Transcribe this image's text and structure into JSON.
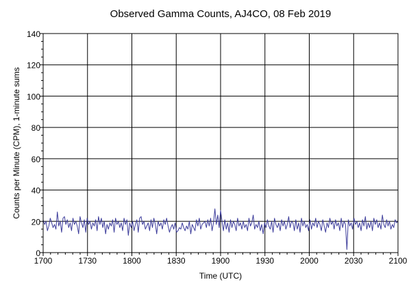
{
  "chart_data": {
    "type": "line",
    "title": "Observed Gamma Counts, AJ4CO, 08 Feb 2019",
    "xlabel": "Time (UTC)",
    "ylabel": "Counts per Minute (CPM), 1-minute sums",
    "x_ticks": [
      {
        "minutes": 0,
        "label": "1700"
      },
      {
        "minutes": 30,
        "label": "1730"
      },
      {
        "minutes": 60,
        "label": "1800"
      },
      {
        "minutes": 90,
        "label": "1830"
      },
      {
        "minutes": 120,
        "label": "1900"
      },
      {
        "minutes": 150,
        "label": "1930"
      },
      {
        "minutes": 180,
        "label": "2000"
      },
      {
        "minutes": 210,
        "label": "2030"
      },
      {
        "minutes": 240,
        "label": "2100"
      }
    ],
    "xlim": [
      0,
      240
    ],
    "ylim": [
      0,
      140
    ],
    "y_ticks": [
      0,
      20,
      40,
      60,
      80,
      100,
      120,
      140
    ],
    "grid": true,
    "series": [
      {
        "color": "#3b3b9a",
        "values": [
          21,
          18,
          20,
          14,
          17,
          22,
          19,
          16,
          18,
          15,
          26,
          17,
          20,
          13,
          22,
          23,
          18,
          21,
          16,
          19,
          14,
          22,
          18,
          20,
          17,
          12,
          23,
          19,
          16,
          21,
          13,
          22,
          18,
          20,
          15,
          19,
          17,
          21,
          14,
          23,
          18,
          22,
          16,
          20,
          12,
          18,
          15,
          19,
          17,
          21,
          13,
          22,
          18,
          20,
          16,
          19,
          14,
          22,
          18,
          21,
          11,
          19,
          16,
          20,
          14,
          18,
          21,
          13,
          22,
          23,
          18,
          20,
          15,
          17,
          19,
          14,
          21,
          16,
          22,
          18,
          12,
          20,
          17,
          19,
          15,
          21,
          18,
          22,
          17,
          13,
          16,
          18,
          15,
          19,
          13,
          14,
          16,
          15,
          19,
          16,
          14,
          17,
          15,
          20,
          12,
          18,
          16,
          14,
          21,
          17,
          22,
          15,
          18,
          19,
          20,
          16,
          21,
          17,
          22,
          14,
          19,
          28,
          18,
          24,
          16,
          27,
          20,
          14,
          21,
          15,
          19,
          13,
          21,
          16,
          20,
          18,
          14,
          22,
          17,
          19,
          15,
          20,
          16,
          18,
          14,
          22,
          17,
          19,
          24,
          15,
          18,
          16,
          20,
          14,
          18,
          12,
          19,
          16,
          21,
          17,
          15,
          20,
          13,
          22,
          18,
          16,
          19,
          14,
          21,
          17,
          20,
          15,
          18,
          23,
          16,
          20,
          19,
          14,
          21,
          15,
          19,
          13,
          22,
          17,
          20,
          16,
          18,
          14,
          21,
          15,
          19,
          17,
          22,
          16,
          20,
          18,
          14,
          21,
          17,
          13,
          19,
          16,
          22,
          18,
          20,
          15,
          21,
          17,
          19,
          14,
          22,
          16,
          20,
          18,
          2,
          21,
          17,
          19,
          15,
          22,
          18,
          20,
          16,
          19,
          14,
          21,
          17,
          23,
          15,
          19,
          16,
          20,
          14,
          22,
          18,
          21,
          16,
          19,
          15,
          24,
          18,
          16,
          21,
          17,
          20,
          15,
          18,
          16,
          21,
          19,
          20
        ]
      }
    ]
  }
}
